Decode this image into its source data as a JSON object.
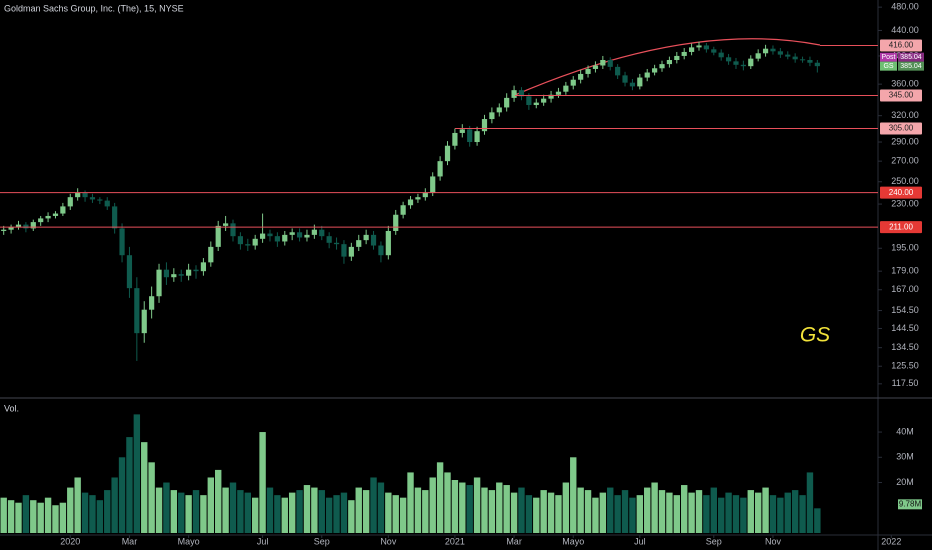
{
  "chart_data": {
    "type": "candlestick",
    "title": "Goldman Sachs Group, Inc. (The), 15, NYSE",
    "annotation": "GS",
    "log_scale": true,
    "up_color": "#7fc98a",
    "down_color": "#0f5b4e",
    "line_color": "#e8505b",
    "ylim": [
      112.7,
      493
    ],
    "yticks": [
      {
        "value": 117.5,
        "label": "117.50"
      },
      {
        "value": 125.5,
        "label": "125.50"
      },
      {
        "value": 134.5,
        "label": "134.50"
      },
      {
        "value": 144.5,
        "label": "144.50"
      },
      {
        "value": 154.5,
        "label": "154.50"
      },
      {
        "value": 167,
        "label": "167.00"
      },
      {
        "value": 179,
        "label": "179.00"
      },
      {
        "value": 195,
        "label": "195.00"
      },
      {
        "value": 230,
        "label": "230.00"
      },
      {
        "value": 250,
        "label": "250.00"
      },
      {
        "value": 270,
        "label": "270.00"
      },
      {
        "value": 290,
        "label": "290.00"
      },
      {
        "value": 320,
        "label": "320.00"
      },
      {
        "value": 360,
        "label": "360.00"
      },
      {
        "value": 400,
        "label": "400.00"
      },
      {
        "value": 440,
        "label": "440.00"
      },
      {
        "value": 480,
        "label": "480.00"
      }
    ],
    "xlim": [
      -0.5,
      118.2
    ],
    "xticks": [
      {
        "value": 9,
        "label": "2020"
      },
      {
        "value": 17,
        "label": "Mar"
      },
      {
        "value": 25,
        "label": "Mayo"
      },
      {
        "value": 35,
        "label": "Jul"
      },
      {
        "value": 43,
        "label": "Sep"
      },
      {
        "value": 52,
        "label": "Nov"
      },
      {
        "value": 61,
        "label": "2021"
      },
      {
        "value": 69,
        "label": "Mar"
      },
      {
        "value": 77,
        "label": "Mayo"
      },
      {
        "value": 86,
        "label": "Jul"
      },
      {
        "value": 96,
        "label": "Sep"
      },
      {
        "value": 104,
        "label": "Nov"
      },
      {
        "value": 120,
        "label": "2022"
      }
    ],
    "ohlc": {
      "open": [
        208,
        209,
        211,
        213,
        210,
        215,
        218,
        220,
        222,
        228,
        236,
        240,
        236,
        234,
        233,
        228,
        210,
        190,
        168,
        142,
        155,
        163,
        180,
        175,
        177,
        176,
        180,
        179,
        185,
        196,
        212,
        214,
        204,
        198,
        197,
        202,
        206,
        204,
        200,
        205,
        207,
        203,
        205,
        209,
        204,
        199,
        198,
        189,
        196,
        201,
        205,
        197,
        190,
        208,
        221,
        229,
        234,
        236,
        240,
        255,
        270,
        286,
        300,
        304,
        290,
        302,
        316,
        324,
        330,
        342,
        352,
        344,
        333,
        336,
        341,
        346,
        350,
        358,
        366,
        374,
        381,
        386,
        394,
        384,
        372,
        362,
        357,
        369,
        376,
        382,
        388,
        394,
        400,
        406,
        413,
        416,
        410,
        405,
        398,
        392,
        387,
        385,
        396,
        404,
        411,
        407,
        402,
        399,
        395,
        394,
        390
      ],
      "high": [
        212,
        213,
        216,
        215,
        217,
        220,
        223,
        224,
        231,
        239,
        244,
        242,
        239,
        236,
        236,
        231,
        214,
        196,
        175,
        160,
        169,
        184,
        185,
        181,
        180,
        184,
        183,
        188,
        200,
        216,
        220,
        217,
        207,
        202,
        205,
        222,
        209,
        207,
        208,
        210,
        210,
        209,
        213,
        212,
        207,
        203,
        201,
        199,
        205,
        209,
        208,
        200,
        212,
        225,
        232,
        237,
        239,
        244,
        259,
        275,
        291,
        305,
        310,
        308,
        307,
        321,
        330,
        335,
        348,
        358,
        356,
        348,
        341,
        346,
        351,
        355,
        363,
        371,
        380,
        386,
        392,
        400,
        398,
        388,
        377,
        367,
        374,
        381,
        387,
        393,
        399,
        406,
        412,
        419,
        422,
        420,
        414,
        410,
        403,
        397,
        393,
        401,
        410,
        417,
        416,
        412,
        407,
        404,
        399,
        399,
        394
      ],
      "low": [
        205,
        206,
        209,
        207,
        208,
        212,
        215,
        218,
        220,
        225,
        233,
        232,
        231,
        230,
        225,
        206,
        185,
        162,
        128,
        137,
        150,
        159,
        170,
        172,
        172,
        173,
        174,
        176,
        182,
        193,
        208,
        200,
        194,
        193,
        194,
        199,
        200,
        196,
        197,
        201,
        200,
        200,
        202,
        201,
        195,
        194,
        184,
        186,
        193,
        198,
        194,
        185,
        187,
        205,
        218,
        226,
        231,
        233,
        237,
        251,
        266,
        282,
        295,
        285,
        286,
        298,
        311,
        319,
        325,
        337,
        339,
        327,
        329,
        332,
        336,
        342,
        346,
        353,
        361,
        369,
        376,
        381,
        379,
        367,
        357,
        352,
        353,
        364,
        372,
        377,
        383,
        389,
        395,
        401,
        408,
        405,
        401,
        393,
        387,
        381,
        379,
        381,
        392,
        399,
        402,
        397,
        395,
        390,
        390,
        385,
        376
      ],
      "close": [
        209,
        211,
        213,
        210,
        215,
        218,
        220,
        222,
        228,
        236,
        240,
        236,
        234,
        233,
        228,
        210,
        190,
        168,
        142,
        155,
        163,
        180,
        175,
        177,
        176,
        180,
        179,
        185,
        196,
        212,
        214,
        204,
        198,
        197,
        202,
        206,
        204,
        200,
        205,
        207,
        203,
        205,
        209,
        204,
        199,
        198,
        189,
        196,
        201,
        205,
        197,
        190,
        208,
        221,
        229,
        234,
        236,
        240,
        255,
        270,
        286,
        300,
        304,
        290,
        302,
        316,
        324,
        330,
        342,
        352,
        344,
        333,
        336,
        341,
        346,
        350,
        358,
        366,
        374,
        381,
        386,
        394,
        384,
        372,
        362,
        357,
        369,
        376,
        382,
        388,
        394,
        400,
        406,
        413,
        416,
        410,
        405,
        398,
        392,
        387,
        385,
        396,
        404,
        411,
        407,
        402,
        399,
        395,
        394,
        390,
        385.04
      ]
    },
    "volume": {
      "label": "Vol.",
      "badge": "9.78M",
      "ylim": [
        0,
        52.7
      ],
      "yticks": [
        {
          "value": 20,
          "label": "20M"
        },
        {
          "value": 30,
          "label": "30M"
        },
        {
          "value": 40,
          "label": "40M"
        }
      ],
      "values": [
        14,
        13,
        12,
        15,
        13,
        12,
        14,
        11,
        12,
        18,
        22,
        16,
        15,
        13,
        17,
        22,
        30,
        38,
        47,
        36,
        28,
        18,
        20,
        17,
        16,
        15,
        17,
        15,
        22,
        25,
        18,
        20,
        17,
        16,
        14,
        40,
        18,
        15,
        14,
        16,
        17,
        19,
        18,
        17,
        14,
        15,
        16,
        13,
        18,
        17,
        22,
        20,
        16,
        15,
        14,
        24,
        18,
        17,
        22,
        28,
        24,
        21,
        20,
        19,
        22,
        18,
        17,
        20,
        19,
        16,
        18,
        15,
        14,
        17,
        16,
        15,
        20,
        30,
        18,
        17,
        14,
        16,
        18,
        15,
        17,
        14,
        15,
        18,
        20,
        17,
        16,
        15,
        19,
        16,
        17,
        15,
        18,
        14,
        16,
        15,
        14,
        17,
        16,
        18,
        15,
        14,
        16,
        17,
        15,
        24,
        9.78
      ]
    },
    "levels": [
      {
        "value": 416,
        "label": "416.00",
        "color": "#f4a6ab"
      },
      {
        "value": 345,
        "label": "345.00",
        "color": "#f4a6ab"
      },
      {
        "value": 305,
        "label": "305.00",
        "color": "#f4a6ab"
      },
      {
        "value": 240,
        "label": "240.00",
        "color": "#e53935"
      },
      {
        "value": 211,
        "label": "211.00",
        "color": "#e53935"
      }
    ],
    "badges": [
      {
        "name": "Post",
        "value": 385.04,
        "label": "385.04",
        "color": "#b03aa8"
      },
      {
        "name": "GS",
        "value": 385.04,
        "label": "385.04",
        "color": "#6fbf73"
      }
    ]
  }
}
